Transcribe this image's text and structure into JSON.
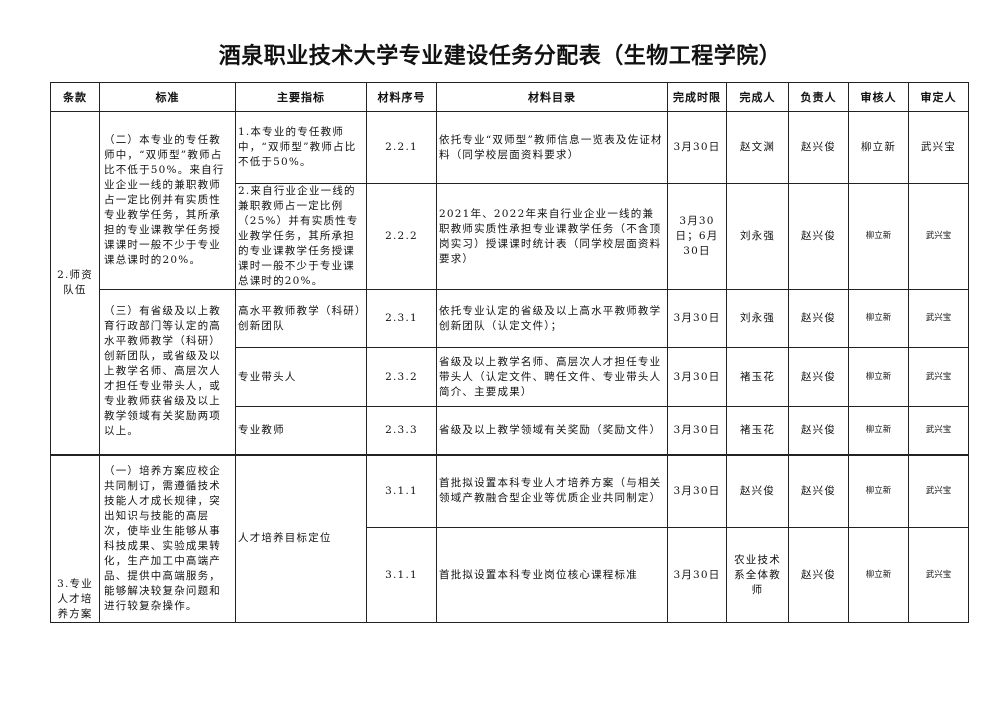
{
  "title": "酒泉职业技术大学专业建设任务分配表（生物工程学院）",
  "headers": [
    "条款",
    "标准",
    "主要指标",
    "材料序号",
    "材料目录",
    "完成时限",
    "完成人",
    "负责人",
    "审核人",
    "审定人"
  ],
  "sections": [
    {
      "clause": "2.师资队伍",
      "standards": [
        "（二）本专业的专任教师中，“双师型”教师占比不低于50%。来自行业企业一线的兼职教师占一定比例并有实质性专业教学任务，其所承担的专业课教学任务授课课时一般不少于专业课总课时的20%。",
        "（三）有省级及以上教育行政部门等认定的高水平教师教学（科研）创新团队，或省级及以上教学名师、高层次人才担任专业带头人，或专业教师获省级及以上教学领域有关奖励两项以上。"
      ]
    },
    {
      "clause": "3.专业人才培养方案",
      "standards": [
        "（一）培养方案应校企共同制订，需遵循技术技能人才成长规律，突出知识与技能的高层次，使毕业生能够从事科技成果、实验成果转化，生产加工中高端产品、提供中高端服务，能够解决较复杂问题和进行较复杂操作。"
      ]
    }
  ],
  "rows": [
    {
      "indicator": "1.本专业的专任教师中，“双师型”教师占比不低于50%。",
      "no": "2.2.1",
      "catalog": "依托专业“双师型”教师信息一览表及佐证材料（同学校层面资料要求）",
      "deadline": "3月30日",
      "doer": "赵文渊",
      "owner": "赵兴俊",
      "reviewer": "柳立新",
      "approver": "武兴宝"
    },
    {
      "indicator": "2.来自行业企业一线的兼职教师占一定比例（25%）并有实质性专业教学任务，其所承担的专业课教学任务授课课时一般不少于专业课总课时的20%。",
      "no": "2.2.2",
      "catalog": "2021年、2022年来自行业企业一线的兼职教师实质性承担专业课教学任务（不含顶岗实习）授课课时统计表（同学校层面资料要求）",
      "deadline": "3月30日；6月30日",
      "doer": "刘永强",
      "owner": "赵兴俊",
      "reviewer": "柳立新",
      "approver": "武兴宝"
    },
    {
      "indicator": "高水平教师教学（科研）创新团队",
      "no": "2.3.1",
      "catalog": "依托专业认定的省级及以上高水平教师教学创新团队（认定文件）；",
      "deadline": "3月30日",
      "doer": "刘永强",
      "owner": "赵兴俊",
      "reviewer": "柳立新",
      "approver": "武兴宝"
    },
    {
      "indicator": "专业带头人",
      "no": "2.3.2",
      "catalog": "省级及以上教学名师、高层次人才担任专业带头人（认定文件、聘任文件、专业带头人简介、主要成果）",
      "deadline": "3月30日",
      "doer": "褚玉花",
      "owner": "赵兴俊",
      "reviewer": "柳立新",
      "approver": "武兴宝"
    },
    {
      "indicator": "专业教师",
      "no": "2.3.3",
      "catalog": "省级及以上教学领域有关奖励（奖励文件）",
      "deadline": "3月30日",
      "doer": "褚玉花",
      "owner": "赵兴俊",
      "reviewer": "柳立新",
      "approver": "武兴宝"
    },
    {
      "indicator": "人才培养目标定位",
      "no": "3.1.1",
      "catalog": "首批拟设置本科专业人才培养方案（与相关领域产教融合型企业等优质企业共同制定）",
      "deadline": "3月30日",
      "doer": "赵兴俊",
      "owner": "赵兴俊",
      "reviewer": "柳立新",
      "approver": "武兴宝"
    },
    {
      "no": "3.1.1",
      "catalog": "首批拟设置本科专业岗位核心课程标准",
      "deadline": "3月30日",
      "doer": "农业技术系全体教师",
      "owner": "赵兴俊",
      "reviewer": "柳立新",
      "approver": "武兴宝"
    }
  ]
}
